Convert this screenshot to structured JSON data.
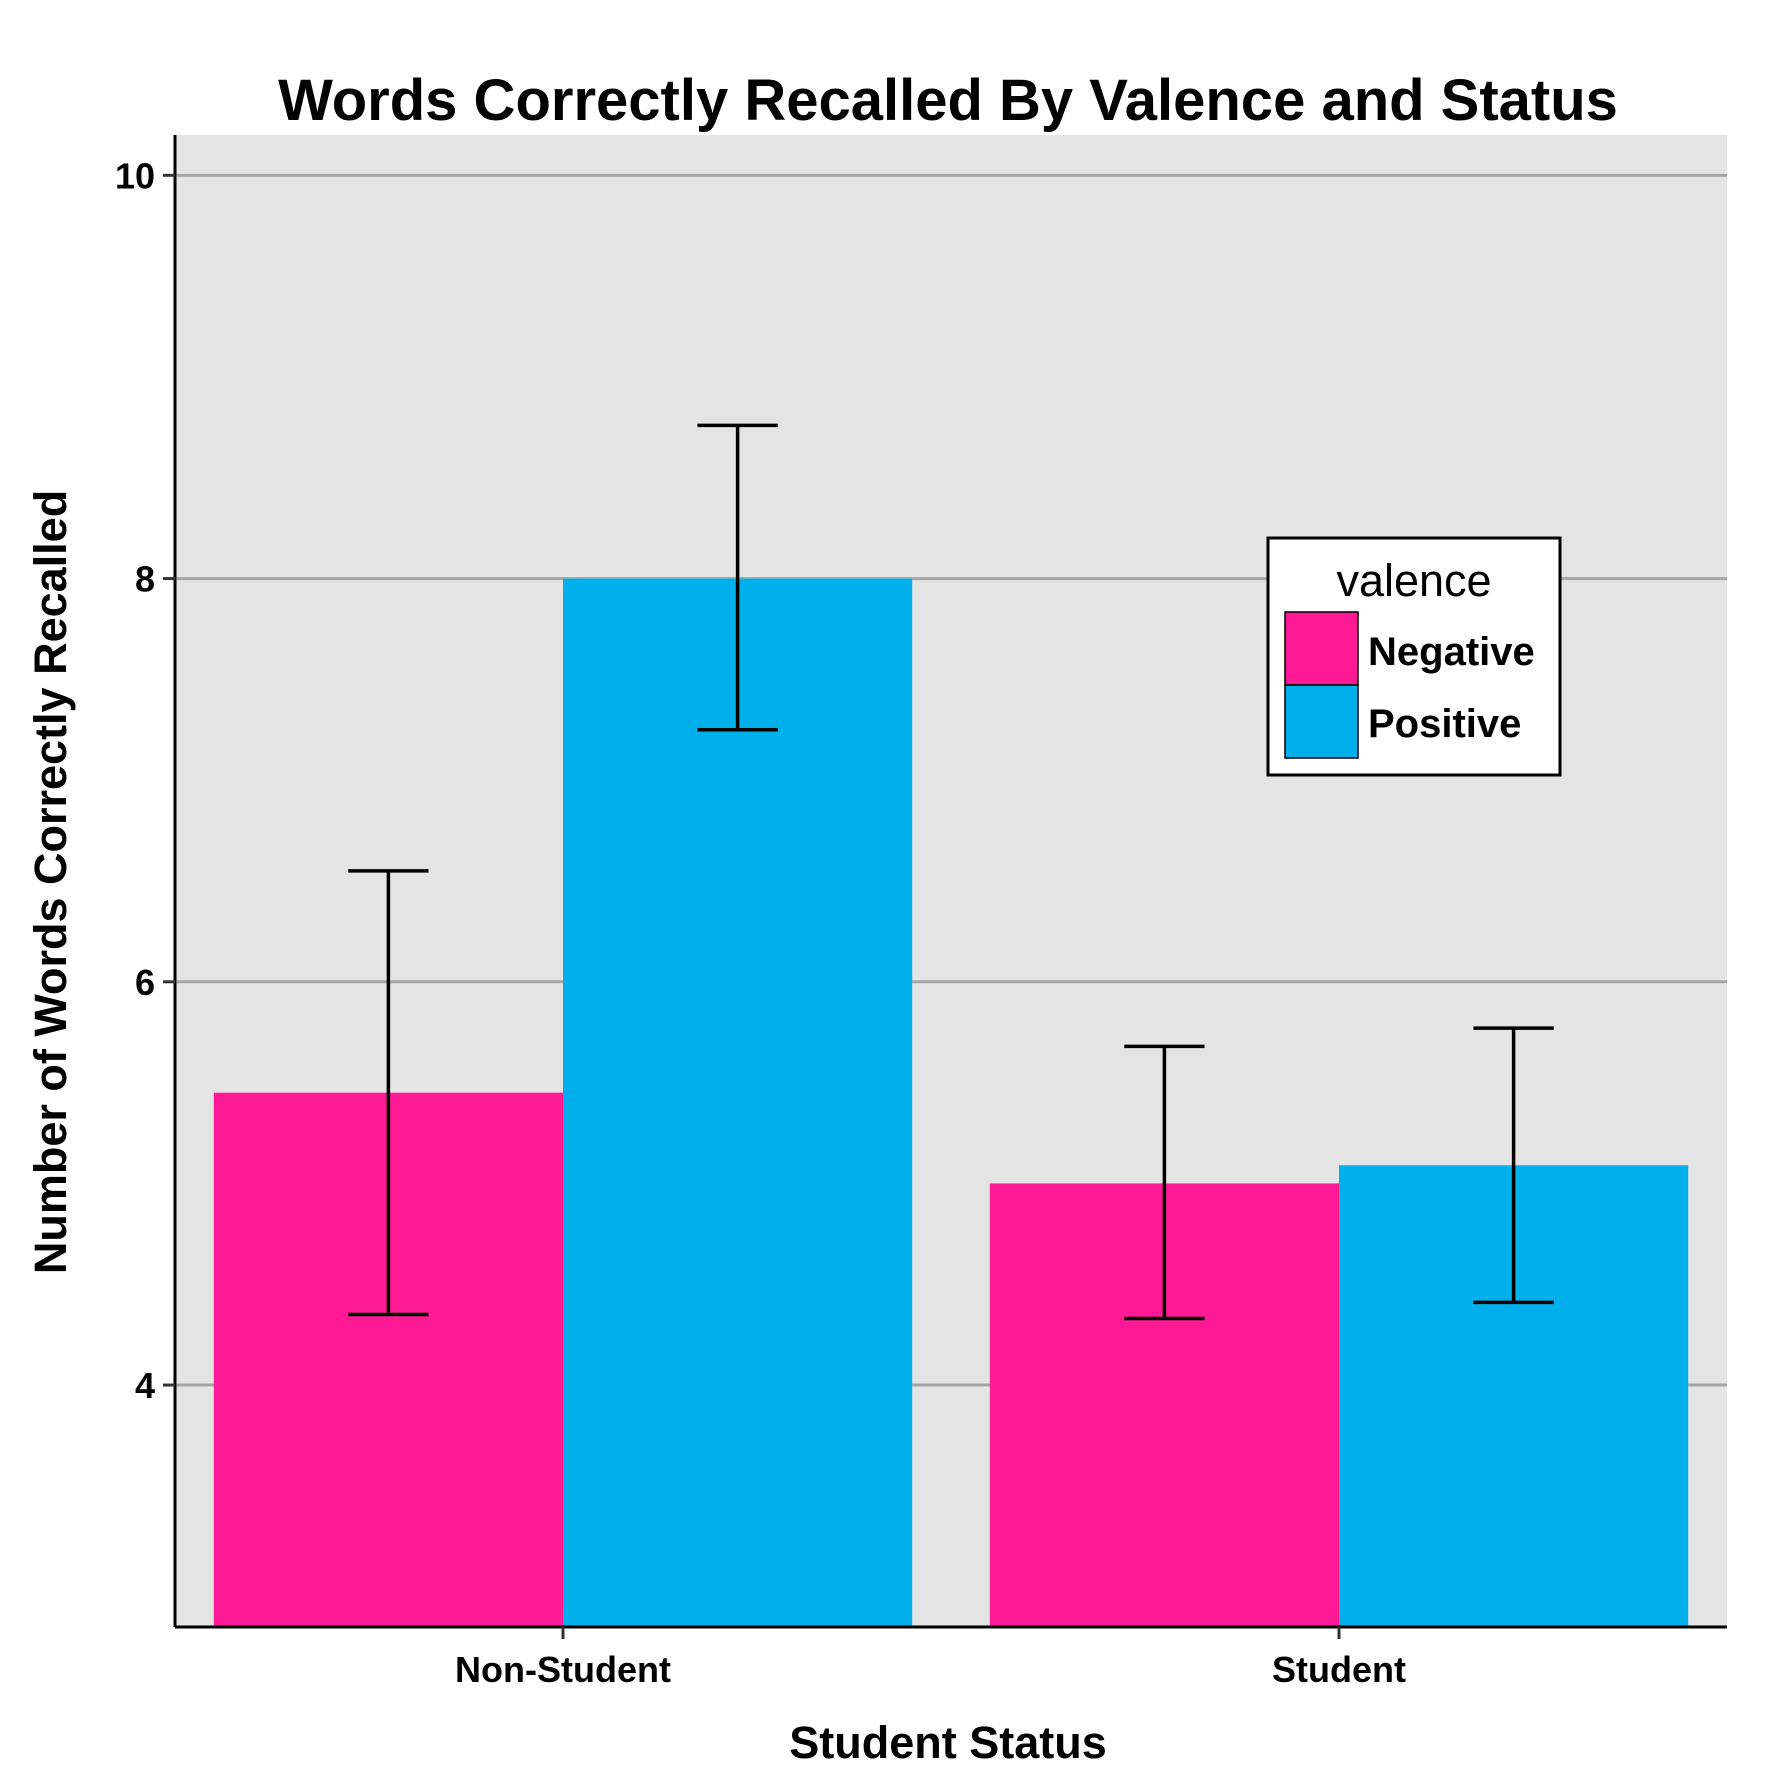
{
  "chart_data": {
    "type": "bar",
    "title": "Words Correctly Recalled By Valence and Status",
    "xlabel": "Student Status",
    "ylabel": "Number of Words Correctly Recalled",
    "categories": [
      "Non-Student",
      "Student"
    ],
    "series": [
      {
        "name": "Negative",
        "color": "#FF1A95",
        "values": [
          5.45,
          5.0
        ],
        "error_low": [
          4.35,
          4.33
        ],
        "error_high": [
          6.55,
          5.68
        ]
      },
      {
        "name": "Positive",
        "color": "#00B0ED",
        "values": [
          8.0,
          5.09
        ],
        "error_low": [
          7.25,
          4.41
        ],
        "error_high": [
          8.76,
          5.77
        ]
      }
    ],
    "ylim": [
      2.8,
      10.2
    ],
    "yticks": [
      4,
      6,
      8,
      10
    ],
    "ytick_labels": [
      "4",
      "6",
      "8",
      "10"
    ],
    "legend": {
      "title": "valence",
      "position": "right",
      "entries": [
        "Negative",
        "Positive"
      ]
    },
    "grid": "horizontal-major",
    "panel_background": "#E4E4E4",
    "gridline_color": "#A6A6A6"
  }
}
